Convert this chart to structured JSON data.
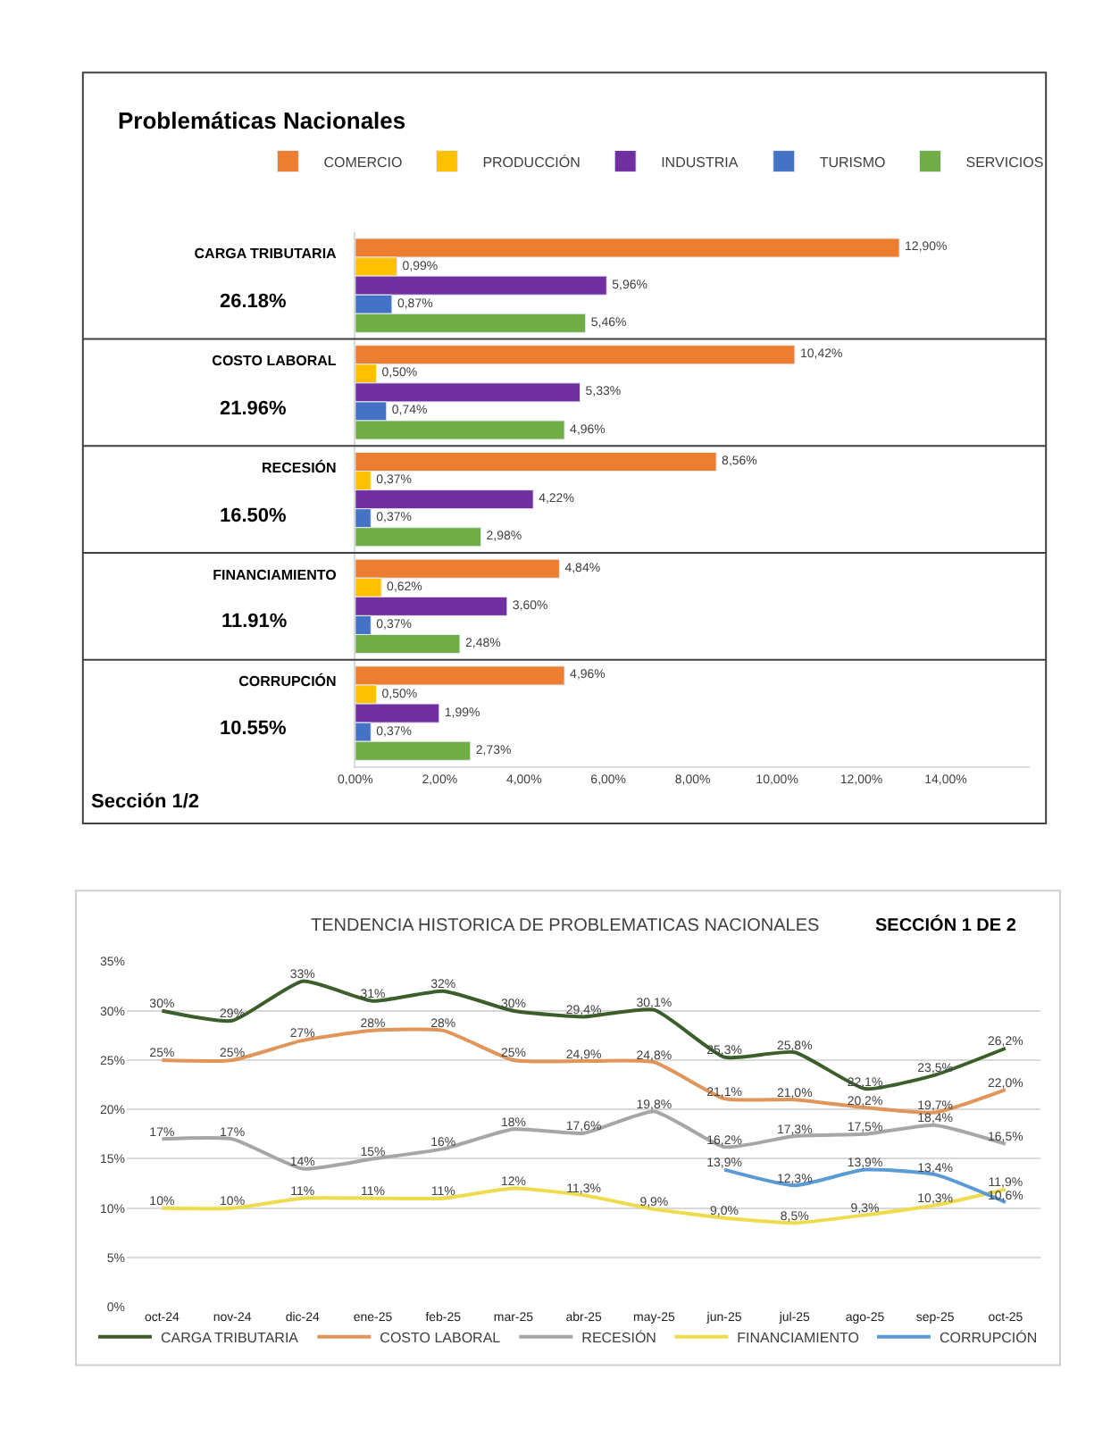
{
  "chart_data": [
    {
      "type": "bar",
      "orientation": "horizontal",
      "title": "Problemáticas Nacionales",
      "annotations": [
        "26.18%",
        "21.96%",
        "16.50%",
        "11.91%",
        "10.55%",
        "Sección 1/2"
      ],
      "categories": [
        "CARGA TRIBUTARIA",
        "COSTO LABORAL",
        "RECESIÓN",
        "FINANCIAMIENTO",
        "CORRUPCIÓN"
      ],
      "series": [
        {
          "name": "COMERCIO",
          "color": "#ed7d31",
          "values": [
            12.9,
            10.42,
            8.56,
            4.84,
            4.96
          ],
          "value_labels": [
            "12,90%",
            "10,42%",
            "8,56%",
            "4,84%",
            "4,96%"
          ]
        },
        {
          "name": "PRODUCCIÓN",
          "color": "#ffc000",
          "values": [
            0.99,
            0.5,
            0.37,
            0.62,
            0.5
          ],
          "value_labels": [
            "0,99%",
            "0,50%",
            "0,37%",
            "0,62%",
            "0,50%"
          ]
        },
        {
          "name": "INDUSTRIA",
          "color": "#7030a0",
          "values": [
            5.96,
            5.33,
            4.22,
            3.6,
            1.99
          ],
          "value_labels": [
            "5,96%",
            "5,33%",
            "4,22%",
            "3,60%",
            "1,99%"
          ]
        },
        {
          "name": "TURISMO",
          "color": "#4472c4",
          "values": [
            0.87,
            0.74,
            0.37,
            0.37,
            0.37
          ],
          "value_labels": [
            "0,87%",
            "0,74%",
            "0,37%",
            "0,37%",
            "0,37%"
          ]
        },
        {
          "name": "SERVICIOS",
          "color": "#70ad47",
          "values": [
            5.46,
            4.96,
            2.98,
            2.48,
            2.73
          ],
          "value_labels": [
            "5,46%",
            "4,96%",
            "2,98%",
            "2,48%",
            "2,73%"
          ]
        }
      ],
      "xlim": [
        0,
        16
      ],
      "xticks": [
        {
          "value": 0,
          "label": "0,00%"
        },
        {
          "value": 2,
          "label": "2,00%"
        },
        {
          "value": 4,
          "label": "4,00%"
        },
        {
          "value": 6,
          "label": "6,00%"
        },
        {
          "value": 8,
          "label": "8,00%"
        },
        {
          "value": 10,
          "label": "10,00%"
        },
        {
          "value": 12,
          "label": "12,00%"
        },
        {
          "value": 14,
          "label": "14,00%"
        }
      ],
      "grid": false,
      "legend": "top"
    },
    {
      "type": "line",
      "title": "TENDENCIA HISTORICA DE PROBLEMATICAS NACIONALES",
      "annotations": [
        "SECCIÓN 1 DE 2"
      ],
      "categories": [
        "oct-24",
        "nov-24",
        "dic-24",
        "ene-25",
        "feb-25",
        "mar-25",
        "abr-25",
        "may-25",
        "jun-25",
        "jul-25",
        "ago-25",
        "sep-25",
        "oct-25"
      ],
      "series": [
        {
          "name": "CARGA TRIBUTARIA",
          "color": "#3b5e2b",
          "values": [
            30,
            29,
            33,
            31,
            32,
            30,
            29.4,
            30.1,
            25.3,
            25.8,
            22.1,
            23.5,
            26.2
          ],
          "value_labels": [
            "30%",
            "29%",
            "33%",
            "31%",
            "32%",
            "30%",
            "29,4%",
            "30,1%",
            "25,3%",
            "25,8%",
            "22,1%",
            "23,5%",
            "26,2%"
          ]
        },
        {
          "name": "COSTO LABORAL",
          "color": "#e0955a",
          "values": [
            25,
            25,
            27,
            28,
            28,
            25,
            24.9,
            24.8,
            21.1,
            21.0,
            20.2,
            19.7,
            22.0
          ],
          "value_labels": [
            "25%",
            "25%",
            "27%",
            "28%",
            "28%",
            "25%",
            "24,9%",
            "24,8%",
            "21,1%",
            "21,0%",
            "20,2%",
            "19,7%",
            "22,0%"
          ]
        },
        {
          "name": "RECESIÓN",
          "color": "#a6a6a6",
          "values": [
            17,
            17,
            14,
            15,
            16,
            18,
            17.6,
            19.8,
            16.2,
            17.3,
            17.5,
            18.4,
            16.5
          ],
          "value_labels": [
            "17%",
            "17%",
            "14%",
            "15%",
            "16%",
            "18%",
            "17,6%",
            "19,8%",
            "16,2%",
            "17,3%",
            "17,5%",
            "18,4%",
            "16,5%"
          ]
        },
        {
          "name": "FINANCIAMIENTO",
          "color": "#eedc4e",
          "values": [
            10,
            10,
            11,
            11,
            11,
            12,
            11.3,
            9.9,
            9.0,
            8.5,
            9.3,
            10.3,
            11.9
          ],
          "value_labels": [
            "10%",
            "10%",
            "11%",
            "11%",
            "11%",
            "12%",
            "11,3%",
            "9,9%",
            "9,0%",
            "8,5%",
            "9,3%",
            "10,3%",
            "11,9%"
          ]
        },
        {
          "name": "CORRUPCIÓN",
          "color": "#5b9bd5",
          "values": [
            null,
            null,
            null,
            null,
            null,
            null,
            null,
            null,
            13.9,
            12.3,
            13.9,
            13.4,
            10.6
          ],
          "value_labels": [
            null,
            null,
            null,
            null,
            null,
            null,
            null,
            null,
            "13,9%",
            "12,3%",
            "13,9%",
            "13,4%",
            "10,6%"
          ]
        }
      ],
      "ylim": [
        0,
        35
      ],
      "yticks": [
        {
          "value": 0,
          "label": "0%"
        },
        {
          "value": 5,
          "label": "5%"
        },
        {
          "value": 10,
          "label": "10%"
        },
        {
          "value": 15,
          "label": "15%"
        },
        {
          "value": 20,
          "label": "20%"
        },
        {
          "value": 25,
          "label": "25%"
        },
        {
          "value": 30,
          "label": "30%"
        },
        {
          "value": 35,
          "label": "35%"
        }
      ],
      "grid": "y",
      "legend": "bottom",
      "marker": "none",
      "line_style": "solid"
    }
  ]
}
